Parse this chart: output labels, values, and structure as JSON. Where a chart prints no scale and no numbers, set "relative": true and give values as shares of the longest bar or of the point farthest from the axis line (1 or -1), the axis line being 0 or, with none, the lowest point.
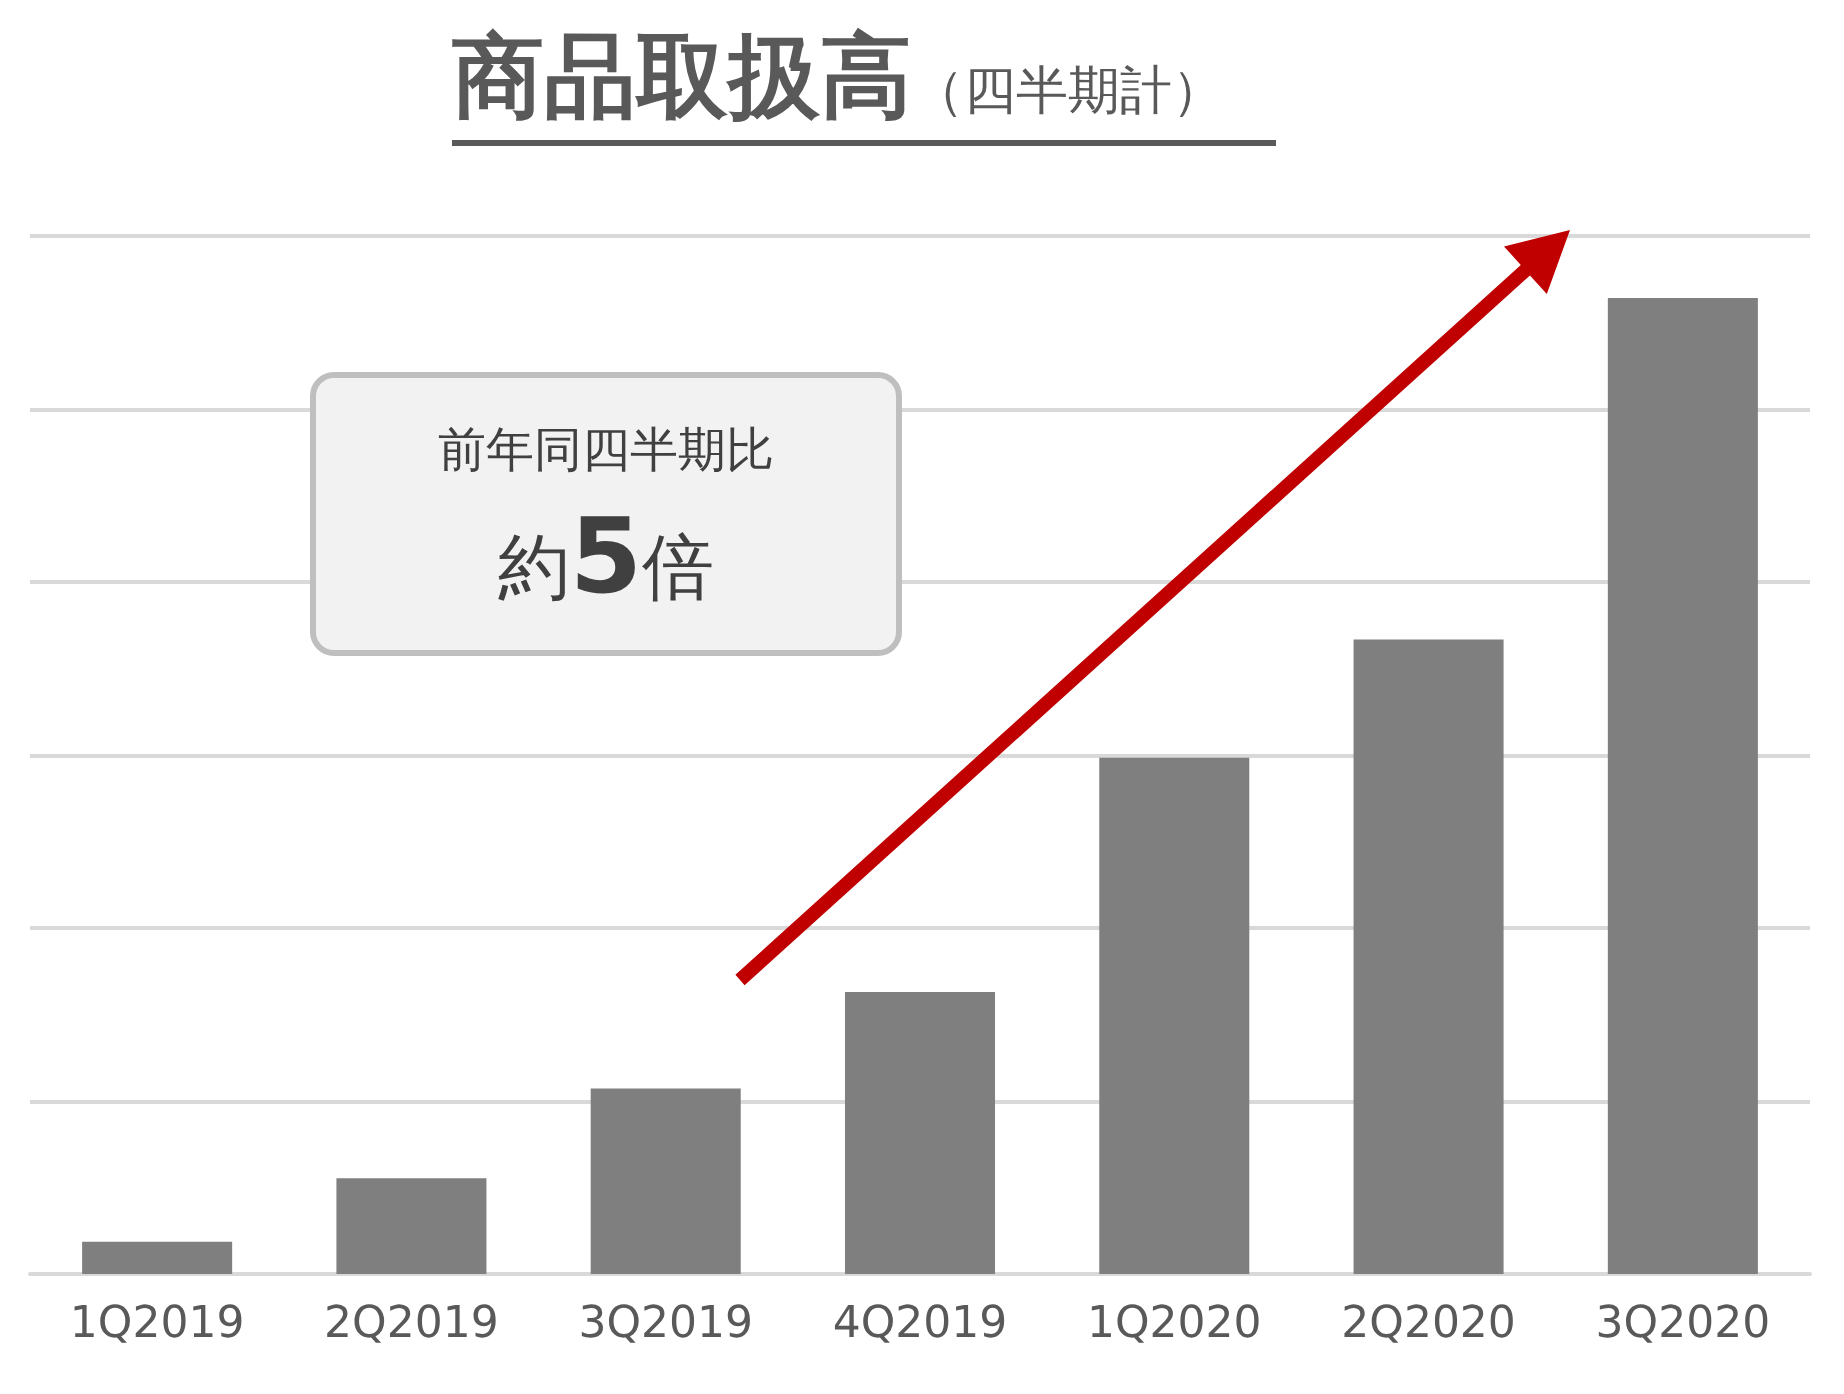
{
  "chart_data": {
    "type": "bar",
    "title": "商品取扱高",
    "subtitle": "（四半期計）",
    "categories": [
      "1Q2019",
      "2Q2019",
      "3Q2019",
      "4Q2019",
      "1Q2020",
      "2Q2020",
      "3Q2020"
    ],
    "values": [
      0.033,
      0.098,
      0.19,
      0.289,
      0.529,
      0.65,
      1
    ],
    "color": "#7f7f7f",
    "relative": true,
    "grid": "y",
    "annotations": [
      "前年同四半期比",
      "約5倍"
    ]
  }
}
